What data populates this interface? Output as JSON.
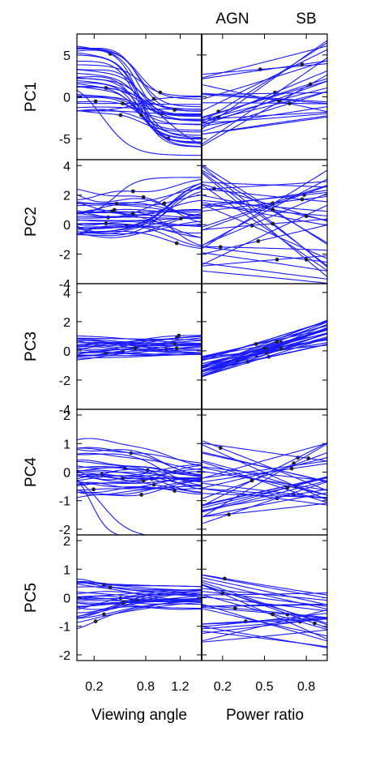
{
  "chart_data": {
    "type": "line",
    "top_labels": [
      "AGN",
      "SB"
    ],
    "xlabels": [
      "Viewing angle",
      "Power ratio"
    ],
    "columns": [
      {
        "name": "viewing-angle",
        "xlim": [
          0.0,
          1.45
        ],
        "xticks": [
          0.2,
          0.8,
          1.2
        ],
        "xtick_labels": [
          "0.2",
          "0.8",
          "1.2"
        ]
      },
      {
        "name": "power-ratio",
        "xlim": [
          0.05,
          0.95
        ],
        "xticks": [
          0.2,
          0.5,
          0.8
        ],
        "xtick_labels": [
          "0.2",
          "0.5",
          "0.8"
        ]
      }
    ],
    "line_color": "#1a1aff",
    "marker_color": "#222222",
    "rows": [
      {
        "ylabel": "PC1",
        "ylim": [
          -7.5,
          7.5
        ],
        "yticks": [
          5,
          0,
          -5
        ],
        "ytick_labels": [
          "5",
          "0",
          "-5"
        ],
        "va": {
          "seed": 11,
          "nlines": 30,
          "start": [
            -2,
            6.2
          ],
          "end": [
            -6.3,
            2
          ],
          "k": 3,
          "mid": 0.5,
          "wiggle": 0.4,
          "outliers": [
            [
              0.3,
              -7,
              6
            ],
            [
              1.0,
              -7,
              4
            ]
          ]
        },
        "pr": {
          "seed": 21,
          "nlines": 26,
          "start": [
            -6,
            4
          ],
          "end": [
            -3,
            7.2
          ],
          "shape": "linear"
        }
      },
      {
        "ylabel": "PC2",
        "ylim": [
          -4,
          4.4
        ],
        "yticks": [
          4,
          2,
          0,
          -2,
          -4
        ],
        "ytick_labels": [
          "4",
          "2",
          "0",
          "-2",
          "-4"
        ],
        "va": {
          "seed": 12,
          "nlines": 32,
          "start": [
            -1,
            2.3
          ],
          "end": [
            -1.8,
            3.3
          ],
          "k": 2,
          "mid": 0.75,
          "wiggle": 0.6,
          "outliers": [
            [
              0.45,
              3.2,
              8
            ]
          ]
        },
        "pr": {
          "seed": 22,
          "nlines": 32,
          "start": [
            -3.3,
            4.2
          ],
          "end": [
            -4,
            4.2
          ],
          "shape": "linear"
        }
      },
      {
        "ylabel": "PC3",
        "ylim": [
          -4,
          4.6
        ],
        "yticks": [
          4,
          2,
          0,
          -2,
          -4
        ],
        "ytick_labels": [
          "4",
          "2",
          "0",
          "-2",
          "-4"
        ],
        "va": {
          "seed": 13,
          "nlines": 24,
          "start": [
            -0.7,
            1.2
          ],
          "end": [
            -0.5,
            1.2
          ],
          "k": 1,
          "mid": 0.5,
          "wiggle": 0.3,
          "outliers": []
        },
        "pr": {
          "seed": 23,
          "nlines": 30,
          "start": [
            -1.8,
            -0.3
          ],
          "end": [
            0.3,
            2.1
          ],
          "shape": "linear"
        }
      },
      {
        "ylabel": "PC4",
        "ylim": [
          -2.2,
          2.2
        ],
        "yticks": [
          2,
          1,
          0,
          -1,
          -2
        ],
        "ytick_labels": [
          "2",
          "1",
          "0",
          "-1",
          "-2"
        ],
        "va": {
          "seed": 14,
          "nlines": 30,
          "start": [
            -0.9,
            1.1
          ],
          "end": [
            -0.9,
            0.4
          ],
          "k": 2,
          "mid": 0.7,
          "wiggle": 0.35,
          "outliers": [
            [
              0.17,
              -2.3,
              10
            ],
            [
              0.28,
              -2.3,
              6
            ]
          ]
        },
        "pr": {
          "seed": 24,
          "nlines": 30,
          "start": [
            -1.9,
            1.1
          ],
          "end": [
            -1.2,
            1.1
          ],
          "shape": "linear"
        }
      },
      {
        "ylabel": "PC5",
        "ylim": [
          -2.2,
          2.2
        ],
        "yticks": [
          2,
          1,
          0,
          -1,
          -2
        ],
        "ytick_labels": [
          "2",
          "1",
          "0",
          "-1",
          "-2"
        ],
        "va": {
          "seed": 15,
          "nlines": 28,
          "start": [
            -1.4,
            0.8
          ],
          "end": [
            -0.4,
            0.4
          ],
          "k": 1,
          "mid": 0.3,
          "wiggle": 0.2,
          "outliers": []
        },
        "pr": {
          "seed": 25,
          "nlines": 28,
          "start": [
            -1.6,
            1.2
          ],
          "end": [
            -1.8,
            0.2
          ],
          "shape": "linear"
        }
      }
    ]
  }
}
